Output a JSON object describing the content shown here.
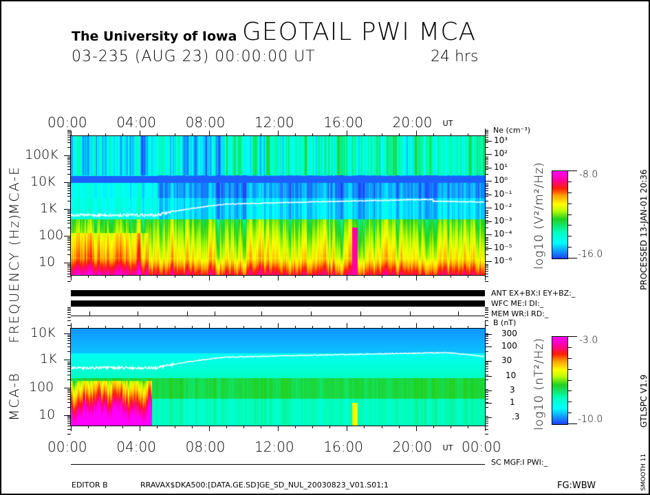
{
  "header": {
    "institution": "The University of Iowa",
    "title": "GEOTAIL PWI MCA",
    "date_line": "03-235 (AUG 23) 00:00:00 UT",
    "duration": "24 hrs"
  },
  "side": {
    "processed": "PROCESSED 13-JAN-01  20:36",
    "version": "GTLSPC  V1.9",
    "smooth": "SMOOTH 11"
  },
  "ylabels": {
    "frequency": "FREQUENCY (Hz)",
    "mca_e": "MCA-E",
    "mca_b": "MCA-B"
  },
  "status": {
    "ant": "ANT EX+BX:I  EY+BZ:_",
    "wfc": "WFC ME:I     DI:_",
    "mem": "MEM WR:I     RD:_",
    "sc": "SC MGF:I    PWI:_"
  },
  "footer": {
    "editor": "EDITOR B",
    "file": "RRAVAX$DKA500:[DATA.GE.SD]GE_SD_NUL_20030823_V01.S01;1",
    "fg": "FG:WBW"
  },
  "chart_data": [
    {
      "type": "heatmap",
      "name": "MCA-E",
      "xlabel": "UT",
      "x_ticks": [
        "00:00",
        "04:00",
        "08:00",
        "12:00",
        "16:00",
        "20:00"
      ],
      "xlim_hours": [
        0,
        24
      ],
      "y_ticks": [
        "100K",
        "10K",
        "1K",
        "100",
        "10"
      ],
      "ylim_hz": [
        5.6,
        400000
      ],
      "yscale": "log",
      "right_axis": {
        "label": "Ne (cm⁻³)",
        "ticks": [
          "10³",
          "10²",
          "10¹",
          "10⁰",
          "10⁻¹",
          "10⁻²",
          "10⁻³",
          "10⁻⁴",
          "10⁻⁵",
          "10⁻⁶"
        ]
      },
      "colorbar": {
        "label": "log10 (V²/m²/Hz)",
        "max": "-8.0",
        "min": "-16.0"
      },
      "overlay_line": "white electron plasma frequency trace rising from ~450 Hz to ~1.8 kHz"
    },
    {
      "type": "heatmap",
      "name": "MCA-B",
      "xlabel": "UT",
      "x_ticks": [
        "00:00",
        "04:00",
        "08:00",
        "12:00",
        "16:00",
        "20:00",
        "00:00"
      ],
      "xlim_hours": [
        0,
        24
      ],
      "y_ticks": [
        "10K",
        "1K",
        "100",
        "10"
      ],
      "ylim_hz": [
        5.6,
        12000
      ],
      "yscale": "log",
      "right_axis": {
        "label": "B (nT)",
        "ticks": [
          "300",
          "100",
          "30",
          "10",
          "3",
          "1",
          ".3"
        ]
      },
      "colorbar": {
        "label": "log10 (nT²/Hz)",
        "max": "-3.0",
        "min": "-10.0"
      },
      "overlay_line": "white electron cyclotron frequency trace"
    }
  ],
  "ut_label": "UT"
}
